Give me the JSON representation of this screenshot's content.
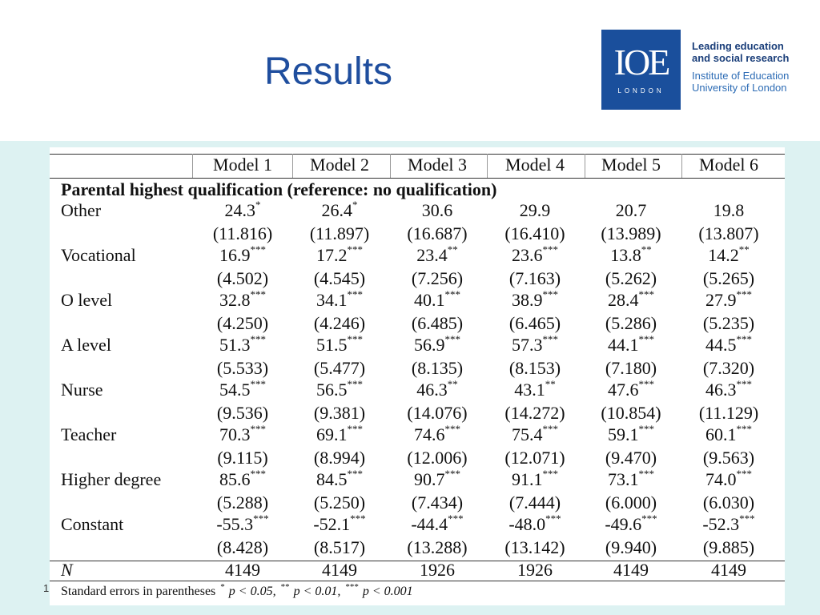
{
  "header": {
    "title": "Results",
    "logo": {
      "mark": "IOE",
      "place": "LONDON",
      "tagline": [
        "Leading education",
        "and social research"
      ],
      "institution": [
        "Institute of Education",
        "University of London"
      ]
    }
  },
  "page_number": "1",
  "table": {
    "columns": [
      "Model 1",
      "Model 2",
      "Model 3",
      "Model 4",
      "Model 5",
      "Model 6"
    ],
    "section": "Parental highest qualification (reference: no qualification)",
    "rows": [
      {
        "label": "Other",
        "coef": [
          "24.3",
          "26.4",
          "30.6",
          "29.9",
          "20.7",
          "19.8"
        ],
        "stars": [
          "*",
          "*",
          null,
          null,
          null,
          null
        ],
        "se": [
          "(11.816)",
          "(11.897)",
          "(16.687)",
          "(16.410)",
          "(13.989)",
          "(13.807)"
        ]
      },
      {
        "label": "Vocational",
        "coef": [
          "16.9",
          "17.2",
          "23.4",
          "23.6",
          "13.8",
          "14.2"
        ],
        "stars": [
          "***",
          "***",
          "**",
          "***",
          "**",
          "**"
        ],
        "se": [
          "(4.502)",
          "(4.545)",
          "(7.256)",
          "(7.163)",
          "(5.262)",
          "(5.265)"
        ]
      },
      {
        "label": "O level",
        "coef": [
          "32.8",
          "34.1",
          "40.1",
          "38.9",
          "28.4",
          "27.9"
        ],
        "stars": [
          "***",
          "***",
          "***",
          "***",
          "***",
          "***"
        ],
        "se": [
          "(4.250)",
          "(4.246)",
          "(6.485)",
          "(6.465)",
          "(5.286)",
          "(5.235)"
        ]
      },
      {
        "label": "A level",
        "coef": [
          "51.3",
          "51.5",
          "56.9",
          "57.3",
          "44.1",
          "44.5"
        ],
        "stars": [
          "***",
          "***",
          "***",
          "***",
          "***",
          "***"
        ],
        "se": [
          "(5.533)",
          "(5.477)",
          "(8.135)",
          "(8.153)",
          "(7.180)",
          "(7.320)"
        ]
      },
      {
        "label": "Nurse",
        "coef": [
          "54.5",
          "56.5",
          "46.3",
          "43.1",
          "47.6",
          "46.3"
        ],
        "stars": [
          "***",
          "***",
          "**",
          "**",
          "***",
          "***"
        ],
        "se": [
          "(9.536)",
          "(9.381)",
          "(14.076)",
          "(14.272)",
          "(10.854)",
          "(11.129)"
        ]
      },
      {
        "label": "Teacher",
        "coef": [
          "70.3",
          "69.1",
          "74.6",
          "75.4",
          "59.1",
          "60.1"
        ],
        "stars": [
          "***",
          "***",
          "***",
          "***",
          "***",
          "***"
        ],
        "se": [
          "(9.115)",
          "(8.994)",
          "(12.006)",
          "(12.071)",
          "(9.470)",
          "(9.563)"
        ]
      },
      {
        "label": "Higher degree",
        "coef": [
          "85.6",
          "84.5",
          "90.7",
          "91.1",
          "73.1",
          "74.0"
        ],
        "stars": [
          "***",
          "***",
          "***",
          "***",
          "***",
          "***"
        ],
        "se": [
          "(5.288)",
          "(5.250)",
          "(7.434)",
          "(7.444)",
          "(6.000)",
          "(6.030)"
        ]
      },
      {
        "label": "Constant",
        "coef": [
          "-55.3",
          "-52.1",
          "-44.4",
          "-48.0",
          "-49.6",
          "-52.3"
        ],
        "stars": [
          "***",
          "***",
          "***",
          "***",
          "***",
          "***"
        ],
        "se": [
          "(8.428)",
          "(8.517)",
          "(13.288)",
          "(13.142)",
          "(9.940)",
          "(9.885)"
        ]
      }
    ],
    "n_label": "N",
    "n": [
      "4149",
      "4149",
      "1926",
      "1926",
      "4149",
      "4149"
    ],
    "footnote": {
      "text": "Standard errors in parentheses",
      "notes": [
        {
          "stars": "*",
          "text": "p < 0.05,"
        },
        {
          "stars": "**",
          "text": "p < 0.01,"
        },
        {
          "stars": "***",
          "text": "p < 0.001"
        }
      ]
    }
  }
}
